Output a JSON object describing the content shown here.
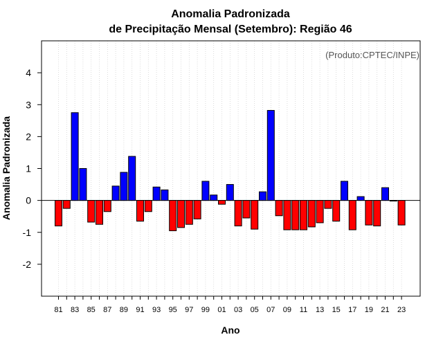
{
  "chart_data": {
    "type": "bar",
    "title_line1": "Anomalia Padronizada",
    "title_line2": "de Precipitação Mensal (Setembro): Região 46",
    "credit": "(Produto:CPTEC/INPE)",
    "xlabel": "Ano",
    "ylabel": "Anomalia Padronizada",
    "ylim": [
      -3,
      5
    ],
    "yticks": [
      -2,
      -1,
      0,
      1,
      2,
      3,
      4
    ],
    "grid": "vertical dotted",
    "colors": {
      "positive": "#0000ff",
      "negative": "#ff0000",
      "grid": "#cccccc"
    },
    "x": [
      "81",
      "82",
      "83",
      "84",
      "85",
      "86",
      "87",
      "88",
      "89",
      "90",
      "91",
      "92",
      "93",
      "94",
      "95",
      "96",
      "97",
      "98",
      "99",
      "00",
      "01",
      "02",
      "03",
      "04",
      "05",
      "06",
      "07",
      "08",
      "09",
      "10",
      "11",
      "12",
      "13",
      "14",
      "15",
      "16",
      "17",
      "18",
      "19",
      "20",
      "21",
      "22",
      "23"
    ],
    "xtick_labels": [
      "81",
      "83",
      "85",
      "87",
      "89",
      "91",
      "93",
      "95",
      "97",
      "99",
      "01",
      "03",
      "05",
      "07",
      "09",
      "11",
      "13",
      "15",
      "17",
      "19",
      "21",
      "23"
    ],
    "values": [
      -0.8,
      -0.25,
      2.75,
      1.0,
      -0.68,
      -0.75,
      -0.35,
      0.45,
      0.88,
      1.38,
      -0.65,
      -0.35,
      0.42,
      0.33,
      -0.95,
      -0.85,
      -0.75,
      -0.58,
      0.6,
      0.17,
      -0.12,
      0.5,
      -0.8,
      -0.55,
      -0.9,
      0.27,
      2.82,
      -0.48,
      -0.92,
      -0.92,
      -0.92,
      -0.83,
      -0.7,
      -0.25,
      -0.65,
      0.6,
      -0.92,
      0.12,
      -0.77,
      -0.8,
      0.4,
      -0.02,
      -0.77
    ]
  }
}
